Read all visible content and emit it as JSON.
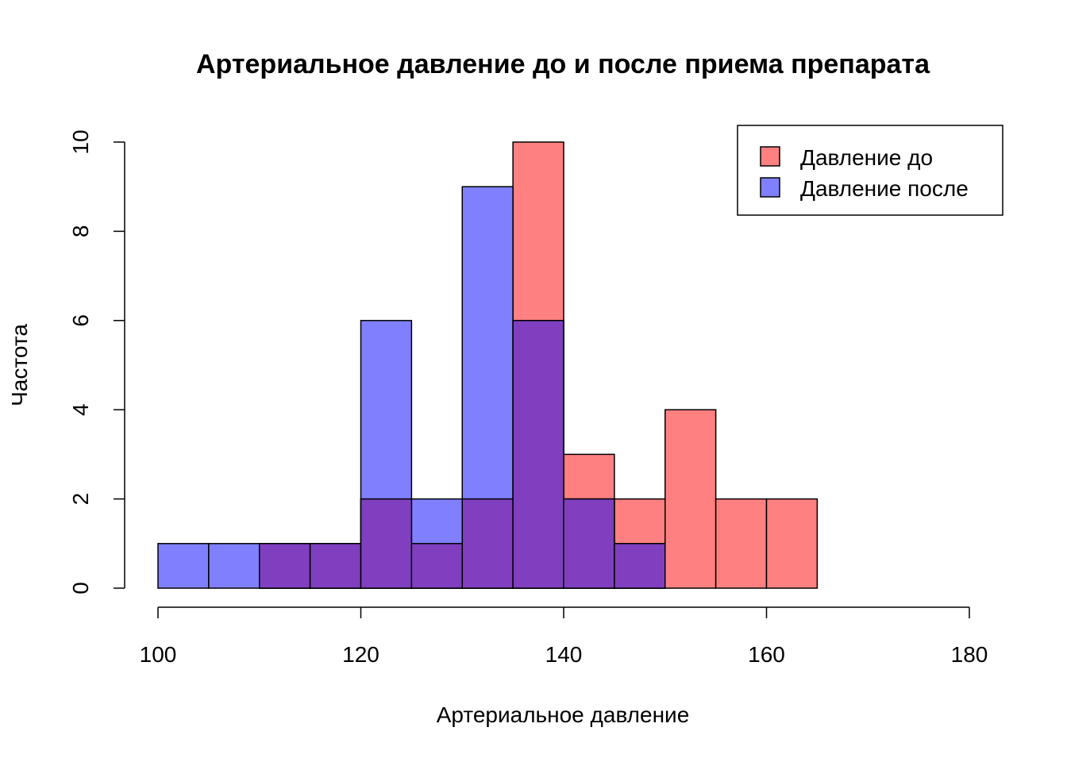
{
  "chart_data": {
    "type": "histogram",
    "title": "Артериальное давление до и после приема препарата",
    "xlabel": "Артериальное давление",
    "ylabel": "Частота",
    "xlim": [
      100,
      180
    ],
    "ylim": [
      0,
      10
    ],
    "x_ticks": [
      "100",
      "120",
      "140",
      "160",
      "180"
    ],
    "y_ticks": [
      "0",
      "2",
      "4",
      "6",
      "8",
      "10"
    ],
    "bin_width": 5,
    "legend_position": "top-right",
    "series": [
      {
        "name": "Давление до",
        "color": "#ff8080",
        "bins": [
          {
            "x0": 110,
            "x1": 115,
            "count": 1
          },
          {
            "x0": 115,
            "x1": 120,
            "count": 1
          },
          {
            "x0": 120,
            "x1": 125,
            "count": 2
          },
          {
            "x0": 125,
            "x1": 130,
            "count": 1
          },
          {
            "x0": 130,
            "x1": 135,
            "count": 2
          },
          {
            "x0": 135,
            "x1": 140,
            "count": 10
          },
          {
            "x0": 140,
            "x1": 145,
            "count": 3
          },
          {
            "x0": 145,
            "x1": 150,
            "count": 2
          },
          {
            "x0": 150,
            "x1": 155,
            "count": 4
          },
          {
            "x0": 155,
            "x1": 160,
            "count": 2
          },
          {
            "x0": 160,
            "x1": 165,
            "count": 2
          }
        ]
      },
      {
        "name": "Давление после",
        "color": "#8080ff",
        "bins": [
          {
            "x0": 100,
            "x1": 105,
            "count": 1
          },
          {
            "x0": 105,
            "x1": 110,
            "count": 1
          },
          {
            "x0": 110,
            "x1": 115,
            "count": 1
          },
          {
            "x0": 115,
            "x1": 120,
            "count": 1
          },
          {
            "x0": 120,
            "x1": 125,
            "count": 6
          },
          {
            "x0": 125,
            "x1": 130,
            "count": 2
          },
          {
            "x0": 130,
            "x1": 135,
            "count": 9
          },
          {
            "x0": 135,
            "x1": 140,
            "count": 6
          },
          {
            "x0": 140,
            "x1": 145,
            "count": 2
          },
          {
            "x0": 145,
            "x1": 150,
            "count": 1
          }
        ]
      }
    ],
    "overlap_color": "#803fbf"
  }
}
